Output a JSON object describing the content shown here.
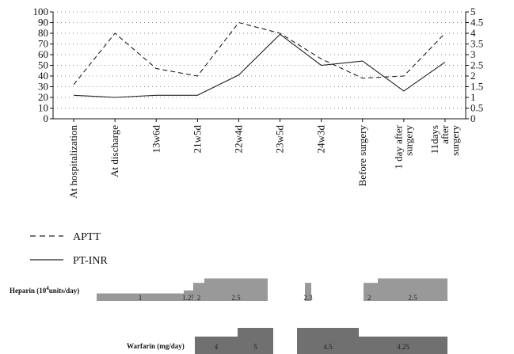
{
  "chart_data": {
    "type": "line",
    "categories": [
      "At hospitalization",
      "At discharge",
      "13w6d",
      "21w5d",
      "22w4d",
      "23w5d",
      "24w3d",
      "Before surgery",
      "1 day after surgery",
      "11days after surgery"
    ],
    "y_left": {
      "min": 0,
      "max": 100,
      "ticks": [
        "0",
        "10",
        "20",
        "30",
        "40",
        "50",
        "60",
        "70",
        "80",
        "90",
        "100"
      ]
    },
    "y_right": {
      "min": 0,
      "max": 5,
      "ticks": [
        "0",
        "0.5",
        "1",
        "1.5",
        "2",
        "2.5",
        "3",
        "3.5",
        "4",
        "4.5",
        "5"
      ]
    },
    "grid": "dotted-horizontal",
    "series": [
      {
        "name": "APTT",
        "axis": "left",
        "style": "dashed",
        "values": [
          32,
          80,
          47,
          40,
          90,
          80,
          56,
          38,
          40,
          80
        ]
      },
      {
        "name": "PT-INR",
        "axis": "right",
        "style": "solid",
        "values": [
          1.1,
          1.0,
          1.1,
          1.1,
          2.05,
          3.95,
          2.5,
          2.7,
          1.3,
          2.65
        ]
      }
    ],
    "legend_position": "below-left"
  },
  "dosing": {
    "heparin": {
      "title": "Heparin (10",
      "title_sup": "4",
      "title_end": "units/day)",
      "blocks": [
        {
          "label": "1",
          "level": 1
        },
        {
          "label": "1.25",
          "level": 1.4
        },
        {
          "label": "2",
          "level": 2.4
        },
        {
          "label": "2.5",
          "level": 3
        },
        {
          "label": "2.3",
          "level": 2.4
        },
        {
          "label": "2",
          "level": 2.4
        },
        {
          "label": "2.5",
          "level": 3
        }
      ]
    },
    "warfarin": {
      "title": "Warfarin (mg/day)",
      "blocks": [
        {
          "label": "4",
          "level": 2
        },
        {
          "label": "5",
          "level": 3
        },
        {
          "label": "4.5",
          "level": 3
        },
        {
          "label": "4.25",
          "level": 2
        }
      ]
    },
    "colors": {
      "heparin": "#999999",
      "warfarin": "#707070"
    }
  }
}
